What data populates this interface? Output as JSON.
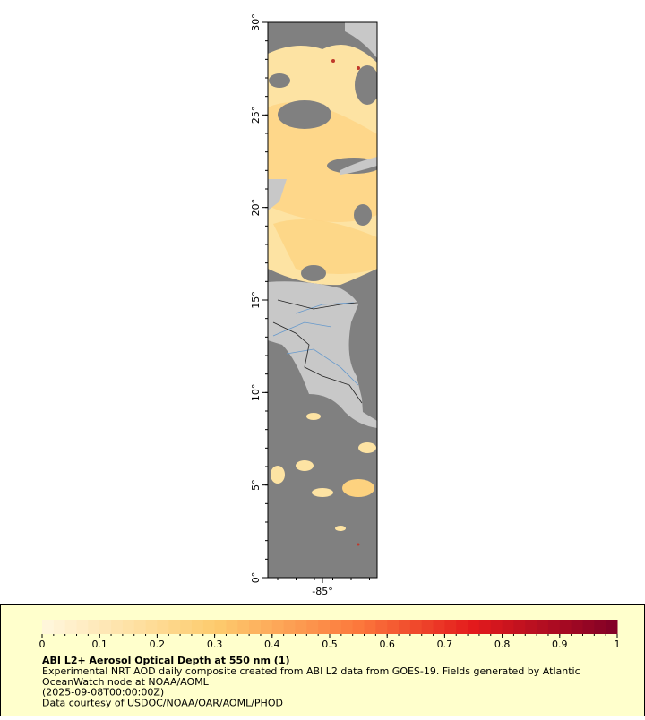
{
  "map": {
    "lat_ticks": [
      "0°",
      "5°",
      "10°",
      "15°",
      "20°",
      "25°",
      "30°"
    ],
    "lon_ticks": [
      "-85°"
    ]
  },
  "legend": {
    "colorbar_ticks": [
      0,
      0.1,
      0.2,
      0.3,
      0.4,
      0.5,
      0.6,
      0.7,
      0.8,
      0.9,
      1
    ],
    "title": "ABI L2+ Aerosol Optical Depth at 550 nm (1)",
    "lines": [
      "Experimental NRT AOD daily composite created from ABI L2 data from GOES-19. Fields generated by Atlantic",
      "OceanWatch node at NOAA/AOML",
      "(2025-09-08T00:00:00Z)",
      "Data courtesy of USDOC/NOAA/OAR/AOML/PHOD"
    ]
  }
}
